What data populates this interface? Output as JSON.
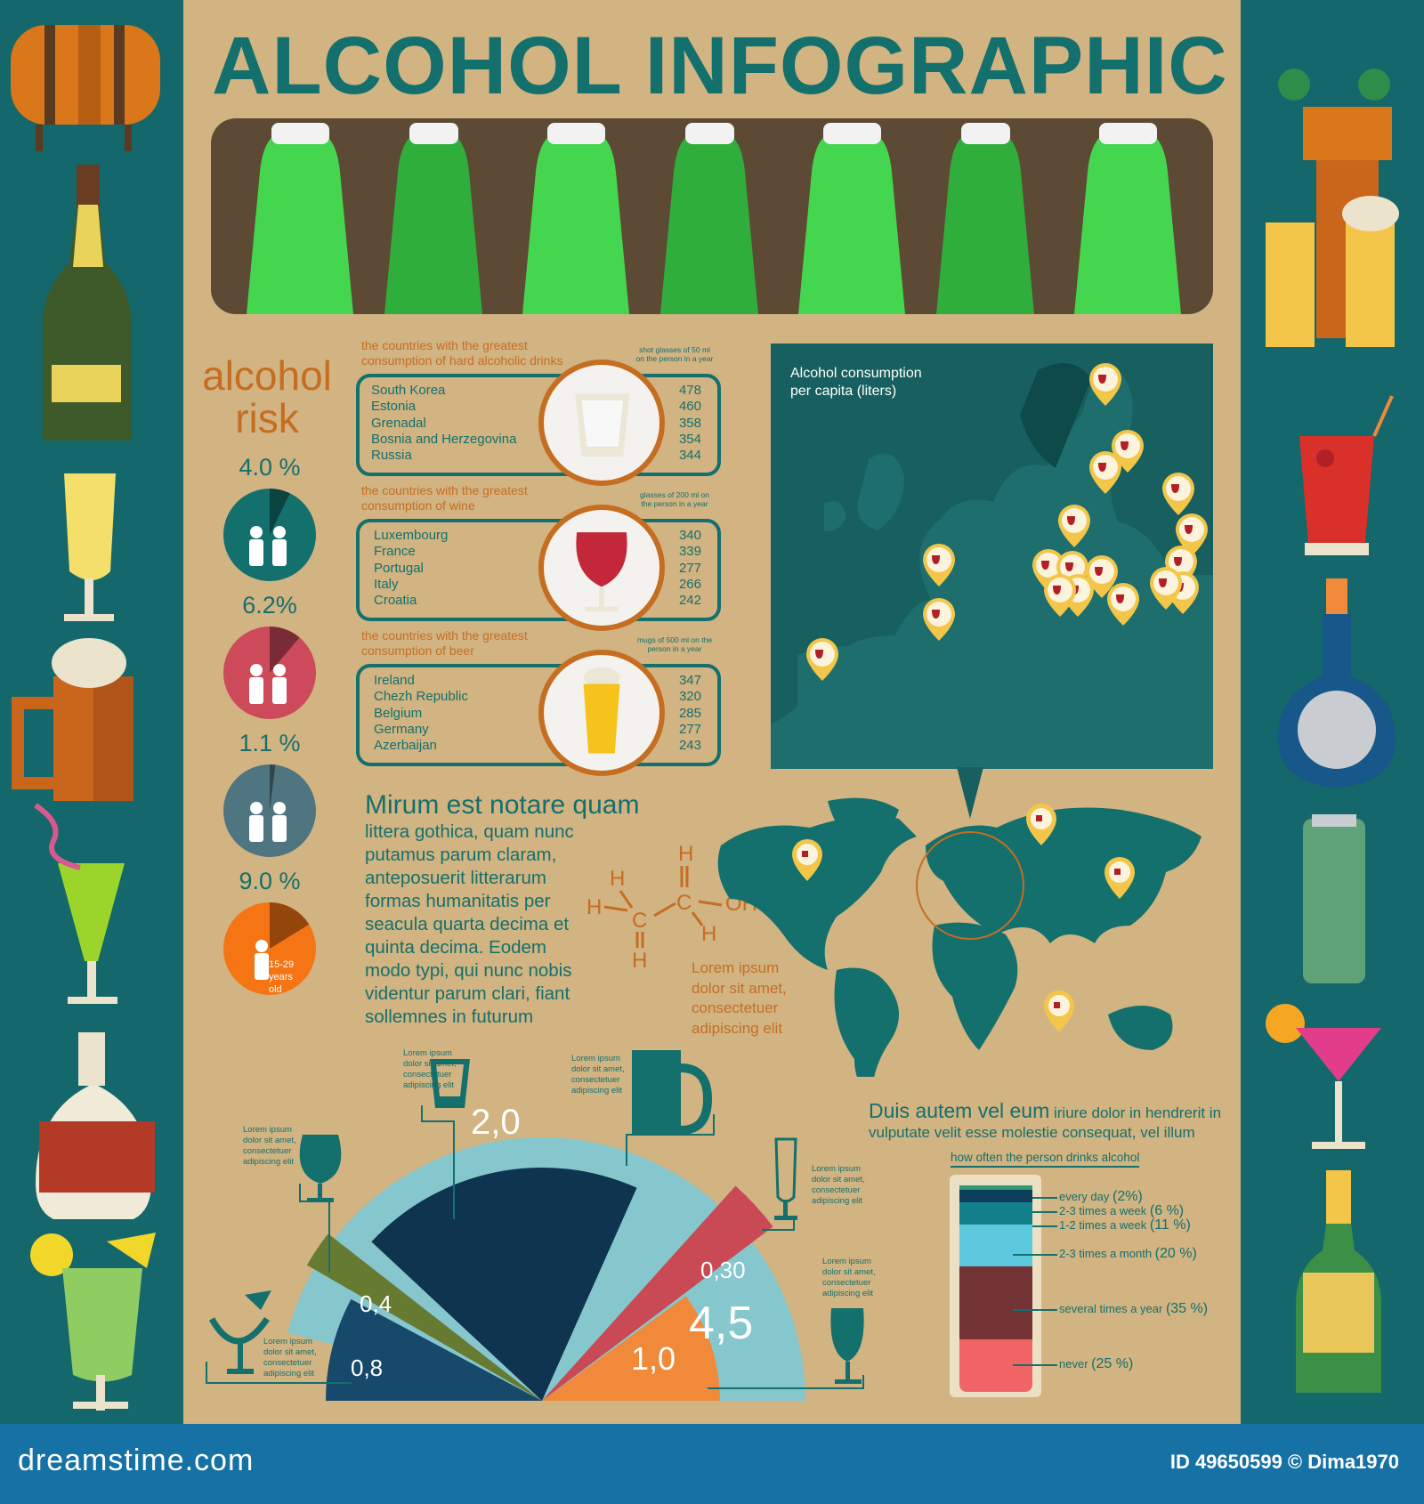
{
  "title": "ALCOHOL INFOGRAPHIC",
  "risk": {
    "heading_line1": "alcohol",
    "heading_line2": "risk",
    "items": [
      {
        "percent": "4.0 %",
        "value": 4.0,
        "color": "#13706c",
        "group": "men and women"
      },
      {
        "percent": "6.2%",
        "value": 6.2,
        "color": "#cc4a5a",
        "group": "men"
      },
      {
        "percent": "1.1 %",
        "value": 1.1,
        "color": "#4f7580",
        "group": "women"
      },
      {
        "percent": "9.0 %",
        "value": 9.0,
        "color": "#f57414",
        "group": "15-29 years old",
        "note": "15-29 years old"
      }
    ]
  },
  "tables": [
    {
      "caption": "the countries with the greatest consumption of hard alcoholic drinks",
      "unit": "shot glasses of 50 ml on the person in a year",
      "icon": "shot-glass",
      "rows": [
        {
          "country": "South Korea",
          "value": "478"
        },
        {
          "country": "Estonia",
          "value": "460"
        },
        {
          "country": "Grenadal",
          "value": "358"
        },
        {
          "country": "Bosnia and Herzegovina",
          "value": "354"
        },
        {
          "country": "Russia",
          "value": "344"
        }
      ]
    },
    {
      "caption": "the countries with the greatest consumption of wine",
      "unit": "glasses of 200 ml on the person in a year",
      "icon": "wine-glass",
      "rows": [
        {
          "country": "Luxembourg",
          "value": "340"
        },
        {
          "country": "France",
          "value": "339"
        },
        {
          "country": "Portugal",
          "value": "277"
        },
        {
          "country": "Italy",
          "value": "266"
        },
        {
          "country": "Croatia",
          "value": "242"
        }
      ]
    },
    {
      "caption": "the countries with the greatest consumption of beer",
      "unit": "mugs of 500 ml on the person in a year",
      "icon": "beer-glass",
      "rows": [
        {
          "country": "Ireland",
          "value": "347"
        },
        {
          "country": "Chezh Republic",
          "value": "320"
        },
        {
          "country": "Belgium",
          "value": "285"
        },
        {
          "country": "Germany",
          "value": "277"
        },
        {
          "country": "Azerbaijan",
          "value": "243"
        }
      ]
    }
  ],
  "europe_map": {
    "title_line1": "Alcohol consumption",
    "title_line2": "per capita (liters)"
  },
  "article": {
    "heading": "Mirum est notare quam",
    "lines": [
      "littera gothica, quam nunc",
      "putamus parum claram,",
      "anteposuerit litterarum",
      "formas humanitatis per",
      "seacula quarta decima et",
      "quinta decima. Eodem",
      "modo typi, qui nunc nobis",
      "videntur parum clari, fiant",
      "sollemnes in futurum"
    ]
  },
  "molecule": {
    "atoms": [
      "H",
      "H",
      "C",
      "H",
      "H",
      "C",
      "OH",
      "H"
    ],
    "caption": [
      "Lorem ipsum",
      "dolor sit amet,",
      "consectetuer",
      "adipiscing elit"
    ]
  },
  "world_text": {
    "big": "Duis autem vel eum",
    "rest_line1": "iriure dolor in hendrerit in",
    "line2": "vulputate velit esse molestie consequat, vel illum"
  },
  "frequency": {
    "title": "how often the person drinks alcohol",
    "items": [
      {
        "label": "every day",
        "pct": "(2%)",
        "value": 2,
        "color": "#2f9a74"
      },
      {
        "label": "2-3 times a week",
        "pct": "(6 %)",
        "value": 6,
        "color": "#0d3f5a"
      },
      {
        "label": "1-2 times a week",
        "pct": "(11 %)",
        "value": 11,
        "color": "#13818c"
      },
      {
        "label": "2-3 times a month",
        "pct": "(20 %)",
        "value": 20,
        "color": "#5cc8de"
      },
      {
        "label": "several times a year",
        "pct": "(35 %)",
        "value": 35,
        "color": "#733234"
      },
      {
        "label": "never",
        "pct": "(25 %)",
        "value": 25,
        "color": "#f06466"
      }
    ]
  },
  "fan": {
    "lorem": [
      "Lorem ipsum",
      "dolor sit amet,",
      "consectetuer",
      "adipiscing elit"
    ],
    "sectors": [
      {
        "label": "0,8",
        "value": 0.8,
        "color": "#17496a",
        "icon": "margarita-glass"
      },
      {
        "label": "0,4",
        "value": 0.4,
        "color": "#677a32",
        "icon": "brandy-glass"
      },
      {
        "label": "2,0",
        "value": 2.0,
        "color": "#0e3450",
        "icon": "shot-glass"
      },
      {
        "label": "0,30",
        "value": 0.3,
        "color": "#c94a55",
        "icon": "champagne-flute"
      },
      {
        "label": "1,0",
        "value": 1.0,
        "color": "#f08a3a",
        "icon": "wine-glass"
      },
      {
        "label": "4,5",
        "value": 4.5,
        "color": "#86c6cd",
        "icon": "beer-mug"
      }
    ]
  },
  "footer": {
    "brand": "dreamstime.com",
    "id": "ID 49650599 © Dima1970"
  }
}
